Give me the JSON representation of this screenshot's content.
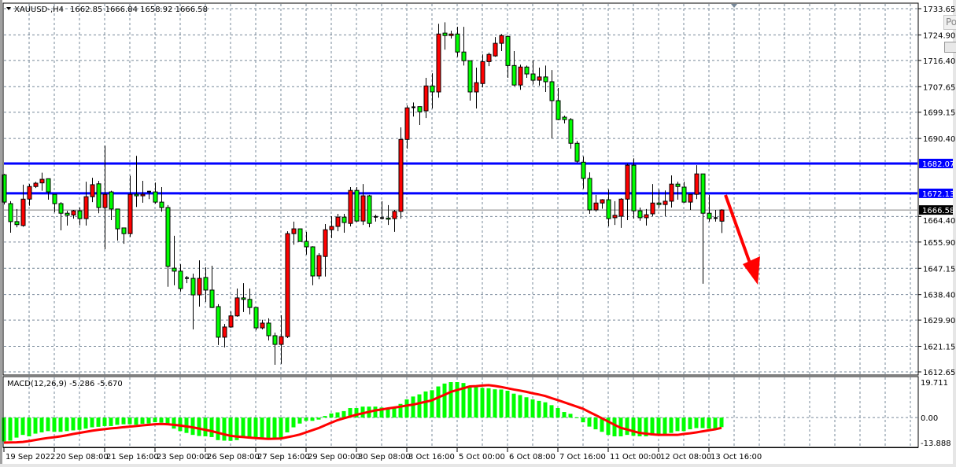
{
  "header": {
    "symbol": "XAUUSD-,H4",
    "ohlc_text": "1662.85 1666.84 1658.92 1666.58",
    "menu_icon": "triangle-down-icon"
  },
  "popup": {
    "label": "Po"
  },
  "colors": {
    "bull_candle": "#ff0000",
    "bear_candle": "#00ff00",
    "level_line": "#0000ff",
    "grid": "#778899",
    "macd_histogram": "#00ff00",
    "macd_signal": "#ff0000",
    "arrow": "#ff0000"
  },
  "chart_data": [
    {
      "type": "candlestick",
      "title": "XAUUSD-,H4",
      "ylim": [
        1612.65,
        1733.65
      ],
      "grid": true,
      "y_ticks": [
        "1733.65",
        "1724.90",
        "1716.40",
        "1707.65",
        "1699.15",
        "1690.40",
        "1664.40",
        "1655.90",
        "1647.15",
        "1638.40",
        "1629.90",
        "1621.15",
        "1612.65"
      ],
      "x_labels": [
        "19 Sep 2022",
        "20 Sep 08:00",
        "21 Sep 16:00",
        "23 Sep 00:00",
        "26 Sep 08:00",
        "27 Sep 16:00",
        "29 Sep 00:00",
        "30 Sep 08:00",
        "3 Oct 16:00",
        "5 Oct 00:00",
        "6 Oct 08:00",
        "7 Oct 16:00",
        "11 Oct 00:00",
        "12 Oct 08:00",
        "13 Oct 16:00"
      ],
      "candle_fields": [
        "open",
        "high",
        "low",
        "close"
      ],
      "candles": [
        [
          1678.3,
          1678.6,
          1668.4,
          1669.2
        ],
        [
          1668.7,
          1669.5,
          1659.0,
          1662.7
        ],
        [
          1662.7,
          1666.9,
          1660.8,
          1661.7
        ],
        [
          1661.4,
          1675.0,
          1661.0,
          1670.2
        ],
        [
          1670.2,
          1675.2,
          1668.0,
          1674.4
        ],
        [
          1674.4,
          1676.0,
          1673.9,
          1675.5
        ],
        [
          1675.6,
          1679.0,
          1673.0,
          1676.8
        ],
        [
          1677.0,
          1677.0,
          1670.0,
          1672.6
        ],
        [
          1671.8,
          1671.8,
          1665.8,
          1668.7
        ],
        [
          1668.7,
          1669.2,
          1659.8,
          1665.5
        ],
        [
          1665.5,
          1666.3,
          1661.4,
          1664.8
        ],
        [
          1664.9,
          1666.6,
          1663.7,
          1666.3
        ],
        [
          1666.3,
          1667.4,
          1661.5,
          1663.7
        ],
        [
          1663.7,
          1676.0,
          1661.4,
          1671.0
        ],
        [
          1671.0,
          1677.3,
          1669.2,
          1675.0
        ],
        [
          1675.3,
          1676.3,
          1665.5,
          1667.4
        ],
        [
          1667.4,
          1688.0,
          1653.5,
          1671.8
        ],
        [
          1672.6,
          1673.0,
          1663.2,
          1666.9
        ],
        [
          1666.9,
          1667.0,
          1656.4,
          1660.3
        ],
        [
          1660.6,
          1660.6,
          1655.3,
          1658.7
        ],
        [
          1658.7,
          1678.0,
          1657.6,
          1671.8
        ],
        [
          1671.8,
          1684.6,
          1667.6,
          1671.3
        ],
        [
          1671.3,
          1676.3,
          1669.0,
          1671.8
        ],
        [
          1672.5,
          1673.0,
          1670.2,
          1672.7
        ],
        [
          1672.6,
          1675.7,
          1668.7,
          1669.2
        ],
        [
          1669.2,
          1674.2,
          1666.0,
          1667.4
        ],
        [
          1667.4,
          1668.2,
          1641.0,
          1647.8
        ],
        [
          1647.2,
          1658.0,
          1641.5,
          1646.2
        ],
        [
          1646.2,
          1648.5,
          1639.4,
          1640.4
        ],
        [
          1643.9,
          1644.6,
          1642.2,
          1643.6
        ],
        [
          1643.8,
          1645.4,
          1626.8,
          1638.3
        ],
        [
          1638.3,
          1649.8,
          1634.4,
          1643.8
        ],
        [
          1644.1,
          1647.5,
          1636.0,
          1639.9
        ],
        [
          1639.9,
          1648.0,
          1633.9,
          1634.1
        ],
        [
          1634.4,
          1635.2,
          1621.6,
          1624.2
        ],
        [
          1624.2,
          1628.6,
          1620.8,
          1627.6
        ],
        [
          1627.6,
          1632.8,
          1627.3,
          1631.3
        ],
        [
          1631.3,
          1640.4,
          1631.0,
          1637.3
        ],
        [
          1637.3,
          1642.2,
          1632.6,
          1636.8
        ],
        [
          1636.8,
          1640.4,
          1631.8,
          1634.1
        ],
        [
          1634.1,
          1634.1,
          1626.5,
          1627.3
        ],
        [
          1627.3,
          1630.0,
          1626.8,
          1628.9
        ],
        [
          1628.9,
          1630.5,
          1623.1,
          1624.7
        ],
        [
          1624.7,
          1625.7,
          1615.0,
          1621.8
        ],
        [
          1621.8,
          1631.5,
          1615.3,
          1624.4
        ],
        [
          1624.4,
          1659.5,
          1623.9,
          1658.7
        ],
        [
          1658.7,
          1662.7,
          1655.0,
          1660.3
        ],
        [
          1660.3,
          1660.3,
          1656.0,
          1656.1
        ],
        [
          1656.1,
          1659.3,
          1651.7,
          1654.3
        ],
        [
          1654.3,
          1654.5,
          1641.5,
          1644.6
        ],
        [
          1644.6,
          1652.2,
          1643.5,
          1651.4
        ],
        [
          1651.1,
          1661.9,
          1644.4,
          1660.0
        ],
        [
          1660.0,
          1664.5,
          1657.2,
          1661.1
        ],
        [
          1661.1,
          1665.3,
          1659.5,
          1664.2
        ],
        [
          1664.2,
          1665.3,
          1659.0,
          1662.4
        ],
        [
          1662.1,
          1674.2,
          1661.1,
          1673.1
        ],
        [
          1673.1,
          1674.2,
          1662.6,
          1662.9
        ],
        [
          1662.9,
          1675.2,
          1661.6,
          1671.3
        ],
        [
          1671.3,
          1671.6,
          1660.8,
          1662.1
        ],
        [
          1664.3,
          1665.0,
          1662.7,
          1664.2
        ],
        [
          1663.9,
          1669.5,
          1663.4,
          1663.8
        ],
        [
          1663.9,
          1668.2,
          1661.6,
          1663.5
        ],
        [
          1663.7,
          1666.6,
          1659.3,
          1666.1
        ],
        [
          1666.1,
          1694.1,
          1663.7,
          1690.1
        ],
        [
          1690.1,
          1701.4,
          1687.0,
          1700.6
        ],
        [
          1700.6,
          1702.4,
          1697.7,
          1700.8
        ],
        [
          1701.0,
          1701.0,
          1694.9,
          1699.3
        ],
        [
          1699.6,
          1710.6,
          1697.2,
          1707.9
        ],
        [
          1707.9,
          1712.1,
          1700.4,
          1705.9
        ],
        [
          1705.9,
          1728.6,
          1704.0,
          1725.2
        ],
        [
          1725.5,
          1729.1,
          1720.0,
          1724.7
        ],
        [
          1724.7,
          1726.3,
          1723.7,
          1725.2
        ],
        [
          1725.2,
          1727.6,
          1717.6,
          1719.2
        ],
        [
          1719.2,
          1727.6,
          1714.7,
          1716.3
        ],
        [
          1716.3,
          1716.3,
          1703.0,
          1705.9
        ],
        [
          1705.9,
          1714.0,
          1700.4,
          1709.0
        ],
        [
          1708.7,
          1718.4,
          1707.4,
          1716.0
        ],
        [
          1716.0,
          1719.0,
          1714.5,
          1718.4
        ],
        [
          1717.9,
          1724.2,
          1717.6,
          1722.1
        ],
        [
          1722.1,
          1725.2,
          1719.5,
          1724.7
        ],
        [
          1724.4,
          1724.7,
          1710.6,
          1714.7
        ],
        [
          1714.7,
          1719.5,
          1707.9,
          1708.2
        ],
        [
          1708.2,
          1715.0,
          1706.6,
          1714.2
        ],
        [
          1714.2,
          1714.7,
          1710.6,
          1711.9
        ],
        [
          1711.9,
          1716.5,
          1708.4,
          1709.8
        ],
        [
          1709.8,
          1714.0,
          1708.0,
          1710.9
        ],
        [
          1710.9,
          1714.7,
          1705.9,
          1709.3
        ],
        [
          1709.3,
          1713.2,
          1690.4,
          1703.0
        ],
        [
          1703.0,
          1707.2,
          1696.5,
          1696.7
        ],
        [
          1697.5,
          1698.0,
          1695.4,
          1696.7
        ],
        [
          1696.7,
          1697.2,
          1687.0,
          1688.8
        ],
        [
          1688.8,
          1689.6,
          1682.3,
          1682.8
        ],
        [
          1682.5,
          1684.4,
          1673.7,
          1677.1
        ],
        [
          1677.1,
          1679.1,
          1665.3,
          1666.6
        ],
        [
          1666.6,
          1671.6,
          1666.0,
          1668.9
        ],
        [
          1668.9,
          1670.2,
          1667.0,
          1670.0
        ],
        [
          1670.0,
          1673.4,
          1661.1,
          1663.7
        ],
        [
          1664.0,
          1669.5,
          1661.6,
          1664.8
        ],
        [
          1664.5,
          1670.5,
          1660.6,
          1670.2
        ],
        [
          1670.2,
          1682.0,
          1663.2,
          1681.5
        ],
        [
          1681.5,
          1683.8,
          1663.7,
          1666.3
        ],
        [
          1666.3,
          1667.4,
          1663.0,
          1664.0
        ],
        [
          1664.0,
          1666.9,
          1661.4,
          1665.0
        ],
        [
          1665.3,
          1675.2,
          1664.5,
          1668.9
        ],
        [
          1668.9,
          1673.4,
          1667.4,
          1668.4
        ],
        [
          1668.4,
          1673.1,
          1664.5,
          1669.5
        ],
        [
          1669.5,
          1678.1,
          1667.4,
          1675.2
        ],
        [
          1675.2,
          1676.0,
          1670.0,
          1674.4
        ],
        [
          1674.2,
          1676.0,
          1669.0,
          1669.2
        ],
        [
          1669.2,
          1671.8,
          1666.6,
          1671.8
        ],
        [
          1671.8,
          1681.5,
          1670.2,
          1678.6
        ],
        [
          1678.6,
          1678.6,
          1642.0,
          1665.5
        ],
        [
          1665.5,
          1671.6,
          1662.7,
          1663.7
        ],
        [
          1663.9,
          1666.6,
          1662.7,
          1663.7
        ],
        [
          1662.85,
          1666.84,
          1658.92,
          1666.58
        ]
      ],
      "horizontal_levels": [
        {
          "value": 1682.07,
          "label": "1682.07"
        },
        {
          "value": 1672.13,
          "label": "1672.13"
        }
      ],
      "current_price": {
        "value": 1666.58,
        "label": "1666.58"
      },
      "annotation": {
        "type": "arrow",
        "direction": "down",
        "color": "#ff0000"
      }
    },
    {
      "type": "bar+line",
      "title": "MACD(12,26,9) -5.286 -5.670",
      "ylim": [
        -13.888,
        19.711
      ],
      "y_ticks": [
        "19.711",
        "0.00",
        "-13.888"
      ],
      "series": [
        {
          "name": "MACD",
          "type": "histogram",
          "values": [
            -13.2,
            -12.8,
            -11.1,
            -9.6,
            -10.4,
            -8.9,
            -8.2,
            -7.5,
            -7.9,
            -7.9,
            -7.5,
            -7.1,
            -6.8,
            -6.1,
            -5.4,
            -5.1,
            -4.7,
            -4.7,
            -4.0,
            -3.7,
            -3.7,
            -4.0,
            -3.4,
            -3.3,
            -2.6,
            -2.8,
            -3.7,
            -6.1,
            -7.5,
            -8.5,
            -9.6,
            -10.2,
            -10.4,
            -10.8,
            -12.5,
            -12.8,
            -12.9,
            -12.5,
            -11.1,
            -11.1,
            -11.1,
            -11.3,
            -11.3,
            -11.3,
            -11.1,
            -8.2,
            -5.4,
            -3.3,
            -1.8,
            -1.8,
            -1.1,
            0.9,
            2.3,
            2.9,
            3.6,
            5.3,
            5.3,
            6.1,
            6.1,
            6.1,
            5.6,
            4.9,
            5.6,
            7.6,
            10.1,
            11.7,
            12.9,
            14.5,
            15.2,
            17.3,
            18.9,
            19.7,
            19.7,
            19.2,
            16.9,
            16.9,
            16.5,
            16.3,
            15.7,
            15.6,
            14.9,
            13.3,
            12.5,
            11.3,
            10.1,
            9.3,
            8.5,
            6.9,
            5.3,
            3.1,
            2.1,
            0.1,
            -2.6,
            -5.0,
            -6.5,
            -7.9,
            -9.6,
            -10.4,
            -10.4,
            -9.6,
            -10.1,
            -10.4,
            -10.4,
            -9.9,
            -9.6,
            -9.4,
            -8.5,
            -7.5,
            -7.5,
            -6.5,
            -5.8,
            -5.8,
            -6.1,
            -6.1,
            -5.286
          ]
        },
        {
          "name": "Signal",
          "type": "line",
          "values": [
            -13.9,
            -13.8,
            -13.7,
            -13.5,
            -13.0,
            -12.4,
            -11.8,
            -11.3,
            -10.9,
            -10.4,
            -9.8,
            -9.1,
            -8.5,
            -7.9,
            -7.3,
            -6.8,
            -6.4,
            -6.0,
            -5.7,
            -5.3,
            -5.0,
            -4.7,
            -4.3,
            -4.0,
            -3.7,
            -3.5,
            -3.7,
            -4.0,
            -4.4,
            -4.9,
            -5.4,
            -6.1,
            -6.8,
            -7.5,
            -8.4,
            -9.3,
            -10.1,
            -10.5,
            -10.8,
            -11.1,
            -11.4,
            -11.6,
            -11.8,
            -11.7,
            -11.6,
            -10.9,
            -10.2,
            -9.4,
            -8.2,
            -7.0,
            -5.8,
            -4.3,
            -2.8,
            -1.4,
            -0.4,
            0.6,
            1.6,
            2.4,
            3.2,
            4.0,
            4.5,
            5.1,
            5.6,
            6.1,
            6.7,
            7.2,
            8.0,
            8.8,
            9.6,
            11.2,
            12.7,
            14.3,
            15.3,
            16.3,
            17.3,
            17.5,
            17.8,
            18.0,
            17.6,
            17.0,
            16.3,
            15.6,
            15.0,
            14.3,
            13.5,
            12.8,
            12.0,
            10.8,
            9.7,
            8.5,
            7.3,
            6.1,
            4.9,
            3.1,
            1.4,
            -0.4,
            -2.2,
            -4.0,
            -5.7,
            -6.6,
            -7.6,
            -8.5,
            -8.9,
            -9.3,
            -9.6,
            -9.6,
            -9.6,
            -9.6,
            -9.1,
            -8.7,
            -8.2,
            -7.6,
            -7.0,
            -6.5,
            -5.67
          ]
        }
      ]
    }
  ]
}
